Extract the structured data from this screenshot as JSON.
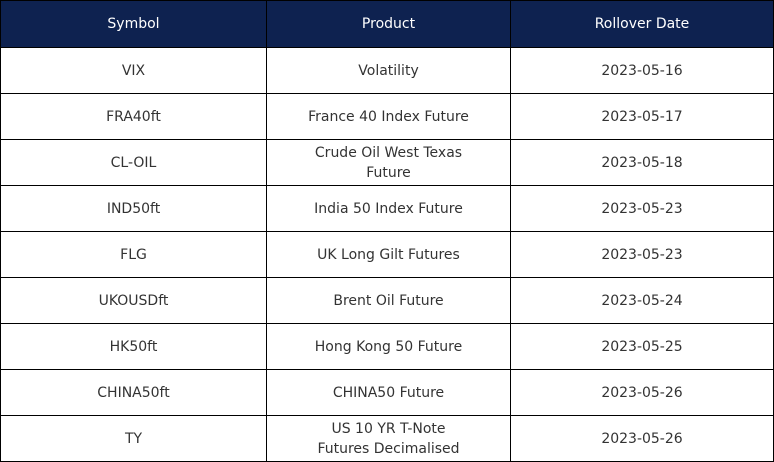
{
  "table": {
    "header": [
      "Symbol",
      "Product",
      "Rollover Date"
    ],
    "rows": [
      [
        "VIX",
        "Volatility",
        "2023-05-16"
      ],
      [
        "FRA40ft",
        "France 40 Index Future",
        "2023-05-17"
      ],
      [
        "CL-OIL",
        "Crude Oil West Texas Future",
        "2023-05-18"
      ],
      [
        "IND50ft",
        "India 50 Index Future",
        "2023-05-23"
      ],
      [
        "FLG",
        "UK Long Gilt Futures",
        "2023-05-23"
      ],
      [
        "UKOUSDft",
        "Brent Oil Future",
        "2023-05-24"
      ],
      [
        "HK50ft",
        "Hong Kong 50 Future",
        "2023-05-25"
      ],
      [
        "CHINA50ft",
        "CHINA50 Future",
        "2023-05-26"
      ],
      [
        "TY",
        "US 10 YR T-Note Futures Decimalised",
        "2023-05-26"
      ]
    ]
  }
}
